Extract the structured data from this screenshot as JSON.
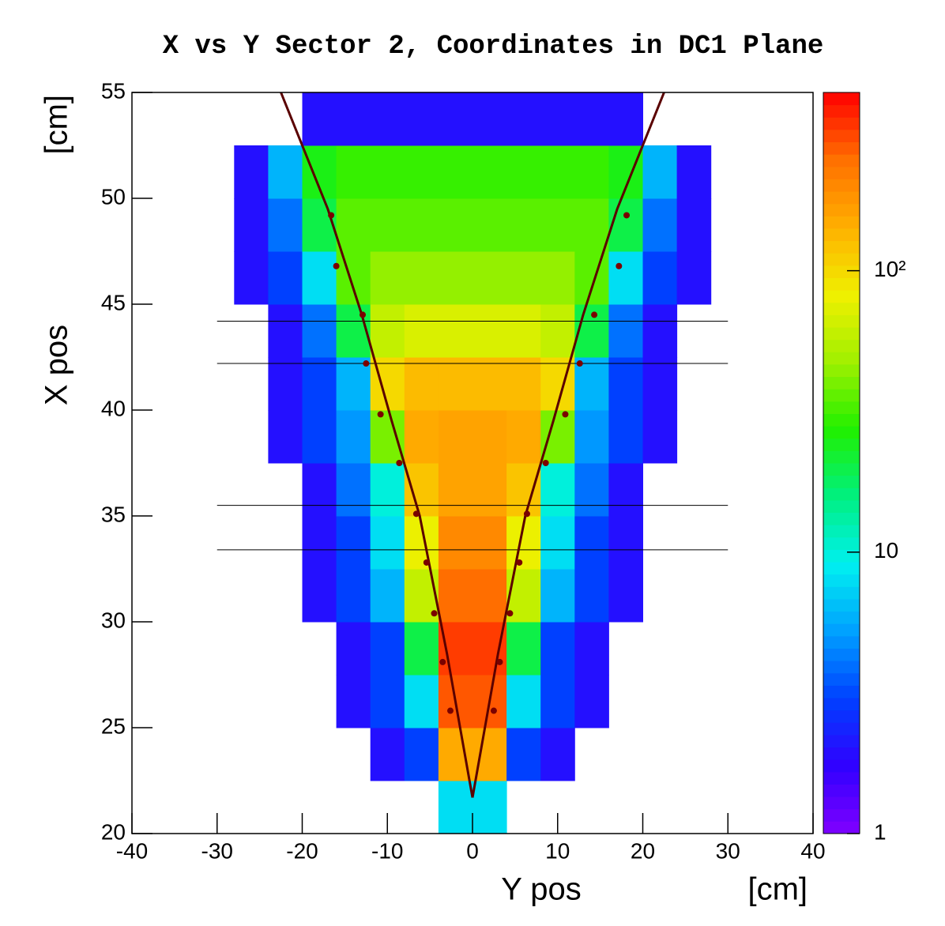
{
  "chart_data": {
    "type": "heatmap",
    "title": "X vs Y Sector 2, Coordinates in DC1 Plane",
    "xlabel": "Y pos",
    "xunit": "[cm]",
    "ylabel": "X pos",
    "yunit": "[cm]",
    "xlim": [
      -40,
      40
    ],
    "xticks": [
      -40,
      -30,
      -20,
      -10,
      0,
      10,
      20,
      30,
      40
    ],
    "ylim": [
      20,
      55
    ],
    "yticks": [
      20,
      25,
      30,
      35,
      40,
      45,
      50,
      55
    ],
    "zlim": [
      1,
      430
    ],
    "zlog": true,
    "zticks": [
      1,
      10,
      {
        "value": 100,
        "label": "10²"
      }
    ],
    "palette": [
      "#8000ff",
      "#3000ff",
      "#0040ff",
      "#00a0ff",
      "#00f0f0",
      "#00f080",
      "#20f000",
      "#a0f000",
      "#f0f000",
      "#ffb000",
      "#ff7000",
      "#ff0000"
    ],
    "xbins": [
      -28,
      -24,
      -20,
      -16,
      -12,
      -8,
      -4,
      0,
      4,
      8,
      12,
      16,
      20,
      24,
      28
    ],
    "ybins": [
      20,
      22.5,
      25,
      27.5,
      30,
      32.5,
      35,
      37.5,
      40,
      42.5,
      45,
      47.5,
      50,
      52.5,
      55
    ],
    "z": [
      [
        null,
        null,
        null,
        null,
        null,
        null,
        8,
        8,
        null,
        null,
        null,
        null,
        null,
        null
      ],
      [
        null,
        null,
        null,
        null,
        2,
        3,
        150,
        150,
        3,
        2,
        null,
        null,
        null,
        null
      ],
      [
        null,
        null,
        null,
        2,
        3,
        8,
        280,
        280,
        8,
        3,
        2,
        null,
        null,
        null
      ],
      [
        null,
        null,
        null,
        2,
        3,
        20,
        320,
        320,
        20,
        3,
        2,
        null,
        null,
        null
      ],
      [
        null,
        null,
        2,
        3,
        6,
        60,
        250,
        250,
        60,
        6,
        3,
        2,
        null,
        null
      ],
      [
        null,
        null,
        2,
        3,
        8,
        80,
        200,
        200,
        80,
        8,
        3,
        2,
        null,
        null
      ],
      [
        null,
        null,
        2,
        4,
        10,
        120,
        160,
        160,
        120,
        10,
        4,
        2,
        null,
        null
      ],
      [
        null,
        2,
        3,
        5,
        40,
        150,
        160,
        160,
        150,
        40,
        5,
        3,
        2,
        null
      ],
      [
        null,
        2,
        3,
        6,
        100,
        130,
        130,
        130,
        130,
        100,
        6,
        3,
        2,
        null
      ],
      [
        null,
        2,
        4,
        20,
        60,
        70,
        70,
        70,
        70,
        60,
        20,
        4,
        2,
        null
      ],
      [
        2,
        3,
        8,
        35,
        45,
        45,
        45,
        45,
        45,
        45,
        35,
        8,
        3,
        2
      ],
      [
        2,
        4,
        20,
        35,
        35,
        35,
        35,
        35,
        35,
        35,
        35,
        20,
        4,
        2
      ],
      [
        2,
        6,
        25,
        30,
        30,
        30,
        30,
        30,
        30,
        30,
        30,
        25,
        6,
        2
      ],
      [
        null,
        null,
        2,
        2,
        2,
        2,
        2,
        2,
        2,
        2,
        2,
        2,
        null,
        null
      ]
    ],
    "hlines": [
      44.2,
      42.2,
      35.5,
      33.4
    ],
    "hline_xrange": [
      -30,
      30
    ],
    "hline_color": "#000000",
    "fit_color": "#5a0000",
    "fit_lines": [
      {
        "x": [
          -22.5,
          -17,
          -13,
          -9.5,
          -6.2,
          -3,
          0
        ],
        "y": [
          55,
          49.5,
          44.5,
          39.5,
          35,
          28.5,
          21.7
        ]
      },
      {
        "x": [
          0,
          3,
          6.2,
          9.5,
          13,
          17,
          22.5
        ],
        "y": [
          21.7,
          28.5,
          35,
          39.5,
          44.5,
          49.5,
          55
        ]
      }
    ],
    "marker_color": "#7a0000",
    "markers": {
      "x": [
        -16.6,
        -16.0,
        -12.9,
        -12.5,
        -10.8,
        -8.6,
        -6.6,
        -5.4,
        -4.5,
        -3.5,
        -2.6,
        18.1,
        17.2,
        14.3,
        12.6,
        10.9,
        8.6,
        6.4,
        5.5,
        4.4,
        3.2,
        2.5
      ],
      "y": [
        49.2,
        46.8,
        44.5,
        42.2,
        39.8,
        37.5,
        35.1,
        32.8,
        30.4,
        28.1,
        25.8,
        49.2,
        46.8,
        44.5,
        42.2,
        39.8,
        37.5,
        35.1,
        32.8,
        30.4,
        28.1,
        25.8
      ]
    }
  }
}
